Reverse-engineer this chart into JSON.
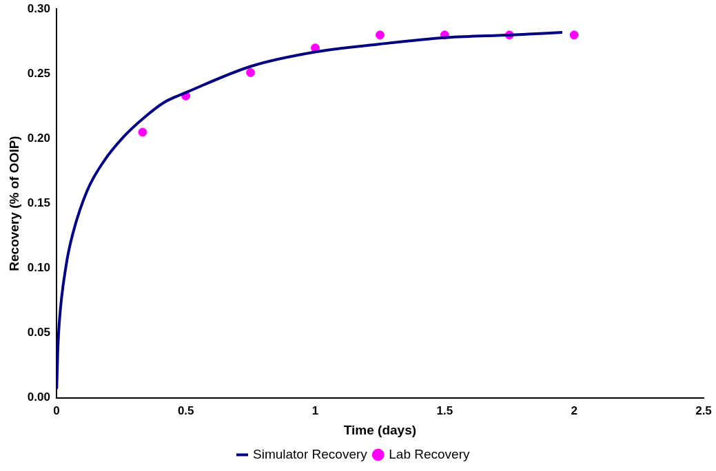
{
  "chart_data": {
    "type": "line",
    "xlabel": "Time (days)",
    "ylabel": "Recovery (% of OOIP)",
    "xlim": [
      0,
      2.5
    ],
    "xticks": [
      0,
      0.5,
      1,
      1.5,
      2,
      2.5
    ],
    "ylim": [
      0,
      0.3
    ],
    "yticks": [
      {
        "value": 0,
        "label": "0.00"
      },
      {
        "value": 0.05,
        "label": "0.05"
      },
      {
        "value": 0.1,
        "label": "0.10"
      },
      {
        "value": 0.15,
        "label": "0.15"
      },
      {
        "value": 0.2,
        "label": "0.20"
      },
      {
        "value": 0.25,
        "label": "0.25"
      },
      {
        "value": 0.3,
        "label": "0.30"
      }
    ],
    "grid": false,
    "legend": "bottom",
    "series": [
      {
        "name": "Simulator Recovery",
        "color": "#000080",
        "marker": "none",
        "x": [
          0.001,
          0.005,
          0.011,
          0.038,
          0.065,
          0.119,
          0.181,
          0.262,
          0.343,
          0.416,
          0.505,
          0.754,
          1.003,
          1.249,
          1.508,
          1.757,
          1.954
        ],
        "values": [
          0.007,
          0.035,
          0.058,
          0.103,
          0.128,
          0.16,
          0.182,
          0.202,
          0.217,
          0.228,
          0.236,
          0.256,
          0.267,
          0.273,
          0.278,
          0.28,
          0.282
        ]
      },
      {
        "name": "Lab Recovery",
        "type": "scatter",
        "color": "#ff00ff",
        "marker": "circle",
        "x": [
          0.333,
          0.5,
          0.75,
          1,
          1.25,
          1.5,
          1.75,
          2
        ],
        "values": [
          0.205,
          0.233,
          0.251,
          0.27,
          0.28,
          0.28,
          0.28,
          0.28
        ]
      }
    ]
  }
}
